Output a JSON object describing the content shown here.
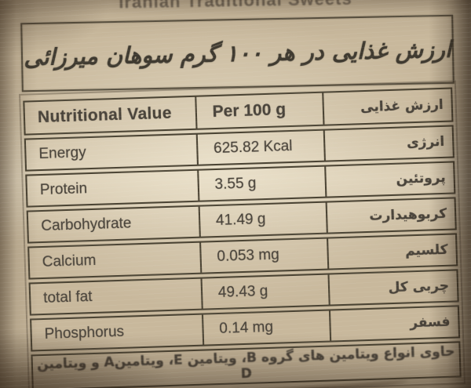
{
  "photo": {
    "top_caption": "Iranian Traditional Sweets"
  },
  "label": {
    "title_fa": "ارزش غذایی در هر ۱۰۰ گرم سوهان میرزائی",
    "table": {
      "header": {
        "name_en": "Nutritional Value",
        "amount": "Per 100 g",
        "name_fa": "ارزش غذایی"
      },
      "rows": [
        {
          "name_en": "Energy",
          "amount": "625.82 Kcal",
          "name_fa": "انرژی"
        },
        {
          "name_en": "Protein",
          "amount": "3.55 g",
          "name_fa": "پروتئین"
        },
        {
          "name_en": "Carbohydrate",
          "amount": "41.49 g",
          "name_fa": "کربوهیدارت"
        },
        {
          "name_en": "Calcium",
          "amount": "0.053 mg",
          "name_fa": "کلسیم"
        },
        {
          "name_en": "total fat",
          "amount": "49.43 g",
          "name_fa": "چربی کل"
        },
        {
          "name_en": "Phosphorus",
          "amount": "0.14 mg",
          "name_fa": "فسفر"
        }
      ],
      "footer_fa": "حاوی انواع ویتامین های گروه B، ویتامین E، ویتامینA و ویتامین D"
    },
    "colors": {
      "paper": "#c8b89c",
      "ink": "#49433a",
      "border": "#4a4333"
    }
  }
}
